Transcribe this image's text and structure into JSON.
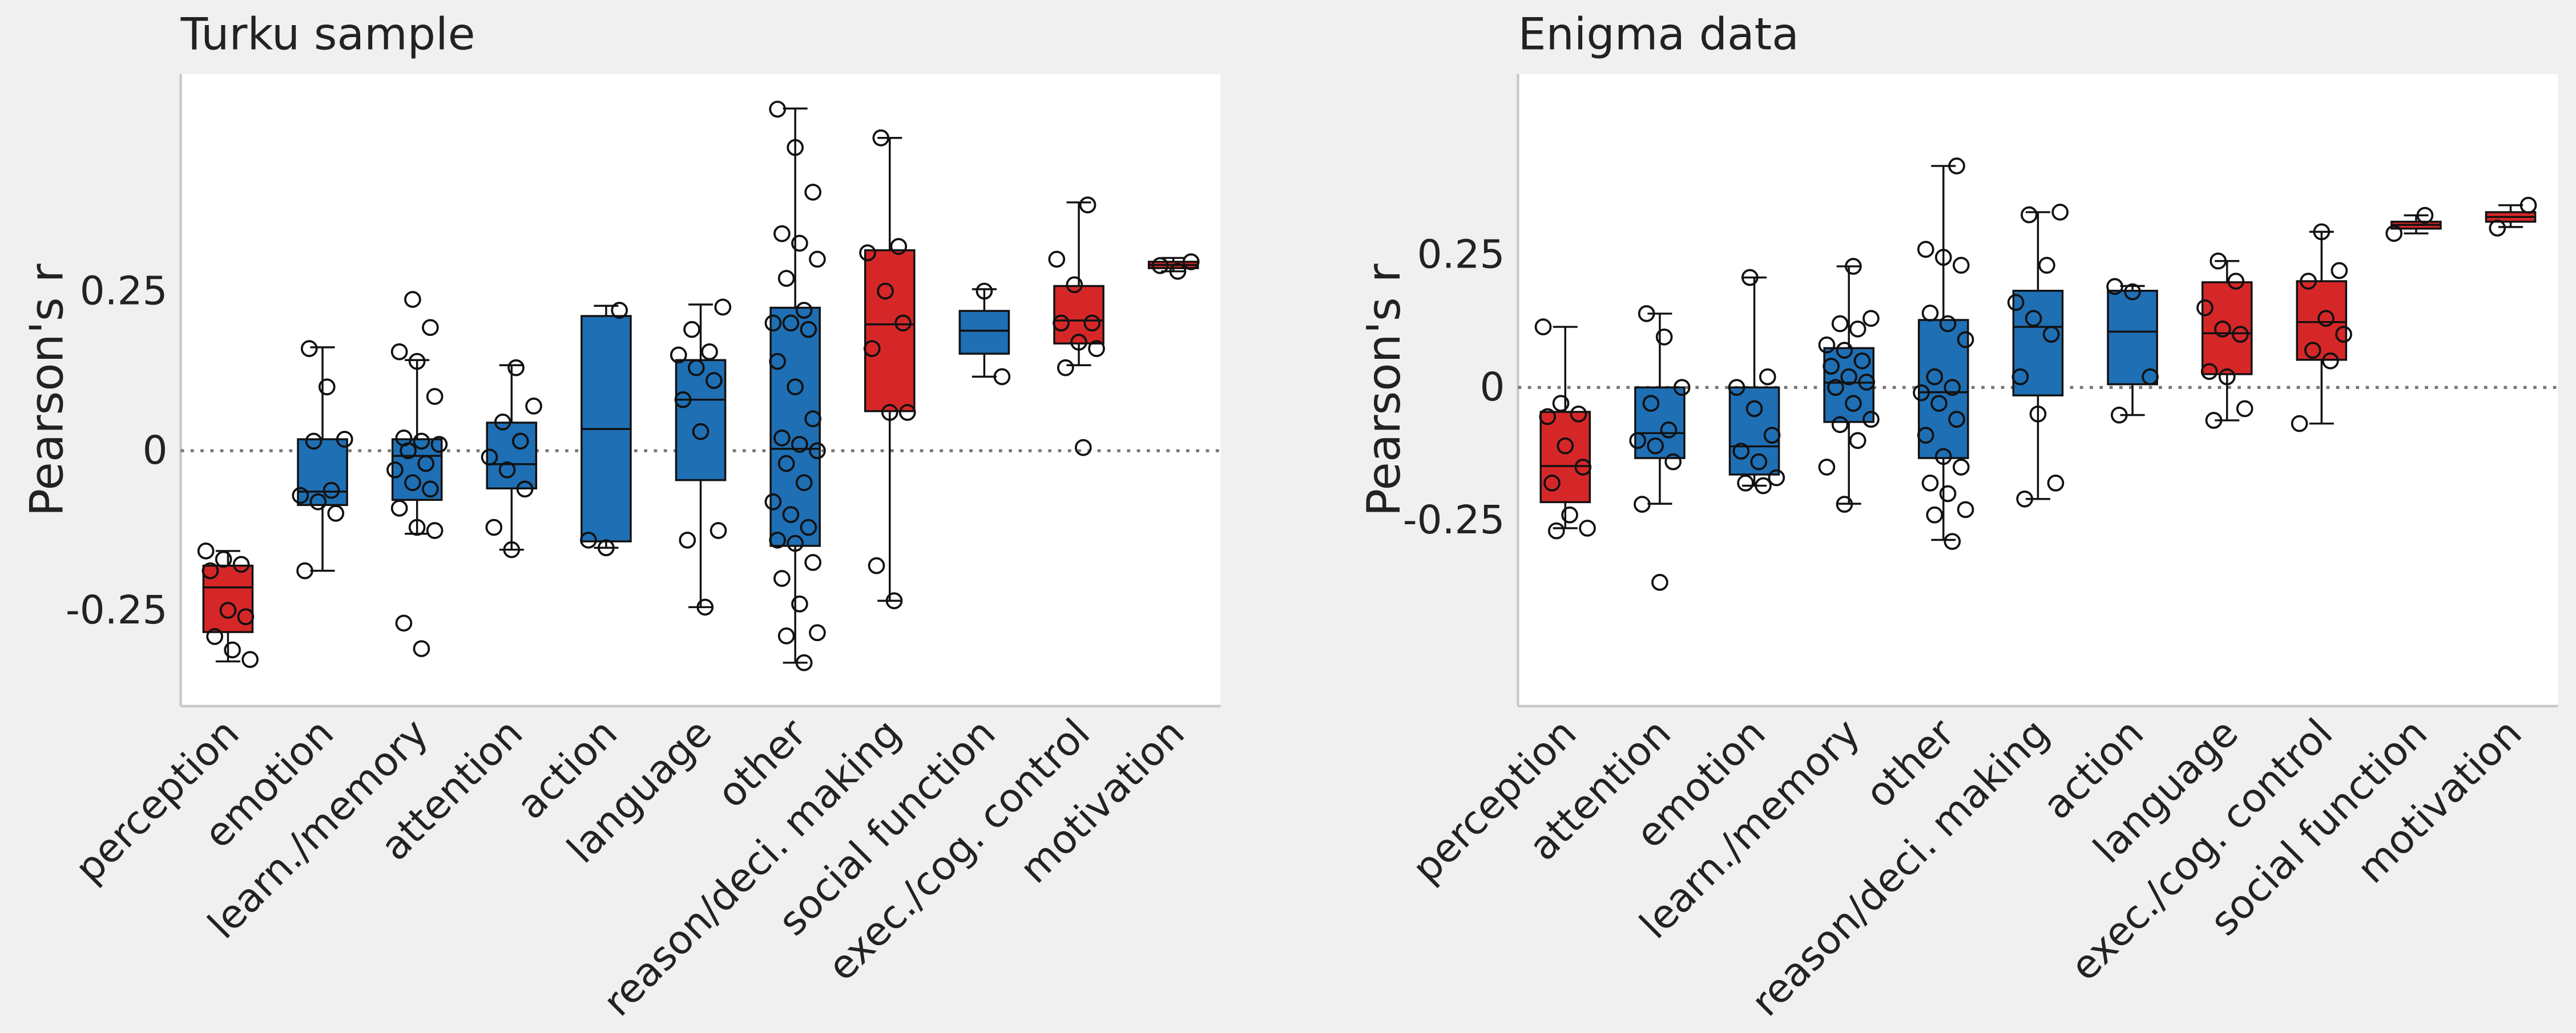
{
  "chart_data": [
    {
      "type": "box",
      "title": "Turku sample",
      "y_label": "Pearson's r",
      "categories": [
        "perception",
        "emotion",
        "learn./memory",
        "attention",
        "action",
        "language",
        "other",
        "reason/deci. making",
        "social function",
        "exec./cog. control",
        "motivation"
      ],
      "box_colors": [
        "#d62728",
        "#1f6fb4",
        "#1f6fb4",
        "#1f6fb4",
        "#1f6fb4",
        "#1f6fb4",
        "#1f6fb4",
        "#d62728",
        "#1f6fb4",
        "#d62728",
        "#d62728"
      ],
      "boxes": [
        {
          "min": -0.33,
          "q1": -0.284,
          "median": -0.214,
          "q3": -0.18,
          "max": -0.157
        },
        {
          "min": -0.188,
          "q1": -0.085,
          "median": -0.064,
          "q3": 0.018,
          "max": 0.162
        },
        {
          "min": -0.13,
          "q1": -0.077,
          "median": -0.008,
          "q3": 0.018,
          "max": 0.142
        },
        {
          "min": -0.155,
          "q1": -0.059,
          "median": -0.021,
          "q3": 0.044,
          "max": 0.134
        },
        {
          "min": -0.152,
          "q1": -0.142,
          "median": 0.034,
          "q3": 0.211,
          "max": 0.227
        },
        {
          "min": -0.245,
          "q1": -0.046,
          "median": 0.08,
          "q3": 0.142,
          "max": 0.229
        },
        {
          "min": -0.332,
          "q1": -0.149,
          "median": 0.003,
          "q3": 0.224,
          "max": 0.536
        },
        {
          "min": -0.235,
          "q1": 0.062,
          "median": 0.198,
          "q3": 0.314,
          "max": 0.49
        },
        {
          "min": 0.116,
          "q1": 0.152,
          "median": 0.188,
          "q3": 0.219,
          "max": 0.253
        },
        {
          "min": 0.134,
          "q1": 0.168,
          "median": 0.204,
          "q3": 0.258,
          "max": 0.389
        },
        {
          "min": 0.281,
          "q1": 0.286,
          "median": 0.291,
          "q3": 0.296,
          "max": 0.302
        }
      ],
      "points": [
        [
          -0.157,
          -0.17,
          -0.178,
          -0.188,
          -0.25,
          -0.26,
          -0.291,
          -0.312,
          -0.327
        ],
        [
          0.16,
          0.1,
          0.018,
          0.015,
          -0.062,
          -0.07,
          -0.08,
          -0.098,
          -0.188
        ],
        [
          0.237,
          0.193,
          0.155,
          0.14,
          0.085,
          0.02,
          0.015,
          0.01,
          0.0,
          -0.02,
          -0.03,
          -0.05,
          -0.06,
          -0.09,
          -0.12,
          -0.125,
          -0.27,
          -0.31
        ],
        [
          0.13,
          0.07,
          0.045,
          0.015,
          -0.01,
          -0.03,
          -0.06,
          -0.12,
          -0.155
        ],
        [
          0.22,
          -0.14,
          -0.152
        ],
        [
          0.225,
          0.19,
          0.155,
          0.15,
          0.13,
          0.11,
          0.08,
          0.03,
          -0.125,
          -0.14,
          -0.245
        ],
        [
          0.535,
          0.475,
          0.405,
          0.34,
          0.325,
          0.3,
          0.27,
          0.22,
          0.2,
          0.2,
          0.19,
          0.14,
          0.1,
          0.05,
          0.02,
          0.01,
          0,
          -0.02,
          -0.05,
          -0.08,
          -0.1,
          -0.12,
          -0.14,
          -0.145,
          -0.175,
          -0.2,
          -0.24,
          -0.285,
          -0.29,
          -0.332
        ],
        [
          0.49,
          0.32,
          0.31,
          0.25,
          0.2,
          0.16,
          0.06,
          0.06,
          -0.18,
          -0.235
        ],
        [
          0.25,
          0.116
        ],
        [
          0.385,
          0.3,
          0.26,
          0.2,
          0.2,
          0.17,
          0.16,
          0.13,
          0.005
        ],
        [
          0.296,
          0.29,
          0.281
        ]
      ],
      "ylim": [
        -0.4,
        0.59
      ],
      "yticks": [
        -0.25,
        0,
        0.25
      ],
      "reference_line": 0
    },
    {
      "type": "box",
      "title": "Enigma data",
      "y_label": "Pearson's r",
      "categories": [
        "perception",
        "attention",
        "emotion",
        "learn./memory",
        "other",
        "reason/deci. making",
        "action",
        "language",
        "exec./cog. control",
        "social function",
        "motivation"
      ],
      "box_colors": [
        "#d62728",
        "#1f6fb4",
        "#1f6fb4",
        "#1f6fb4",
        "#1f6fb4",
        "#1f6fb4",
        "#1f6fb4",
        "#d62728",
        "#d62728",
        "#d62728",
        "#d62728"
      ],
      "boxes": [
        {
          "min": -0.265,
          "q1": -0.216,
          "median": -0.148,
          "q3": -0.046,
          "max": 0.114
        },
        {
          "min": -0.219,
          "q1": -0.133,
          "median": -0.086,
          "q3": 0.0,
          "max": 0.139
        },
        {
          "min": -0.185,
          "q1": -0.164,
          "median": -0.111,
          "q3": 0.0,
          "max": 0.207
        },
        {
          "min": -0.219,
          "q1": -0.065,
          "median": 0.009,
          "q3": 0.074,
          "max": 0.228
        },
        {
          "min": -0.287,
          "q1": -0.133,
          "median": -0.009,
          "q3": 0.127,
          "max": 0.417
        },
        {
          "min": -0.21,
          "q1": -0.015,
          "median": 0.114,
          "q3": 0.182,
          "max": 0.33
        },
        {
          "min": -0.052,
          "q1": 0.006,
          "median": 0.105,
          "q3": 0.182,
          "max": 0.191
        },
        {
          "min": -0.062,
          "q1": 0.025,
          "median": 0.102,
          "q3": 0.198,
          "max": 0.238
        },
        {
          "min": -0.068,
          "q1": 0.052,
          "median": 0.123,
          "q3": 0.2,
          "max": 0.293
        },
        {
          "min": 0.29,
          "q1": 0.299,
          "median": 0.306,
          "q3": 0.312,
          "max": 0.324
        },
        {
          "min": 0.302,
          "q1": 0.312,
          "median": 0.321,
          "q3": 0.33,
          "max": 0.343
        }
      ],
      "points": [
        [
          0.114,
          -0.03,
          -0.05,
          -0.055,
          -0.11,
          -0.15,
          -0.18,
          -0.24,
          -0.265,
          -0.27
        ],
        [
          0.139,
          0.095,
          0.0,
          -0.03,
          -0.08,
          -0.1,
          -0.11,
          -0.14,
          -0.22,
          -0.367
        ],
        [
          0.207,
          0.02,
          0.0,
          -0.04,
          -0.09,
          -0.12,
          -0.14,
          -0.17,
          -0.18,
          -0.185
        ],
        [
          0.228,
          0.13,
          0.12,
          0.11,
          0.08,
          0.07,
          0.05,
          0.04,
          0.02,
          0.01,
          0.0,
          -0.03,
          -0.06,
          -0.07,
          -0.1,
          -0.15,
          -0.22
        ],
        [
          0.417,
          0.26,
          0.245,
          0.23,
          0.14,
          0.12,
          0.09,
          0.02,
          0.0,
          -0.01,
          -0.03,
          -0.06,
          -0.09,
          -0.13,
          -0.15,
          -0.18,
          -0.2,
          -0.23,
          -0.24,
          -0.29
        ],
        [
          0.33,
          0.325,
          0.23,
          0.16,
          0.13,
          0.1,
          0.02,
          -0.05,
          -0.18,
          -0.21
        ],
        [
          0.19,
          0.18,
          0.02,
          -0.052
        ],
        [
          0.238,
          0.2,
          0.15,
          0.11,
          0.1,
          0.03,
          0.02,
          -0.04,
          -0.062
        ],
        [
          0.293,
          0.22,
          0.2,
          0.13,
          0.1,
          0.07,
          0.05,
          -0.068
        ],
        [
          0.324,
          0.29
        ],
        [
          0.343,
          0.3
        ]
      ],
      "ylim": [
        -0.6,
        0.59
      ],
      "yticks": [
        -0.25,
        0,
        0.25
      ],
      "reference_line": 0
    }
  ]
}
